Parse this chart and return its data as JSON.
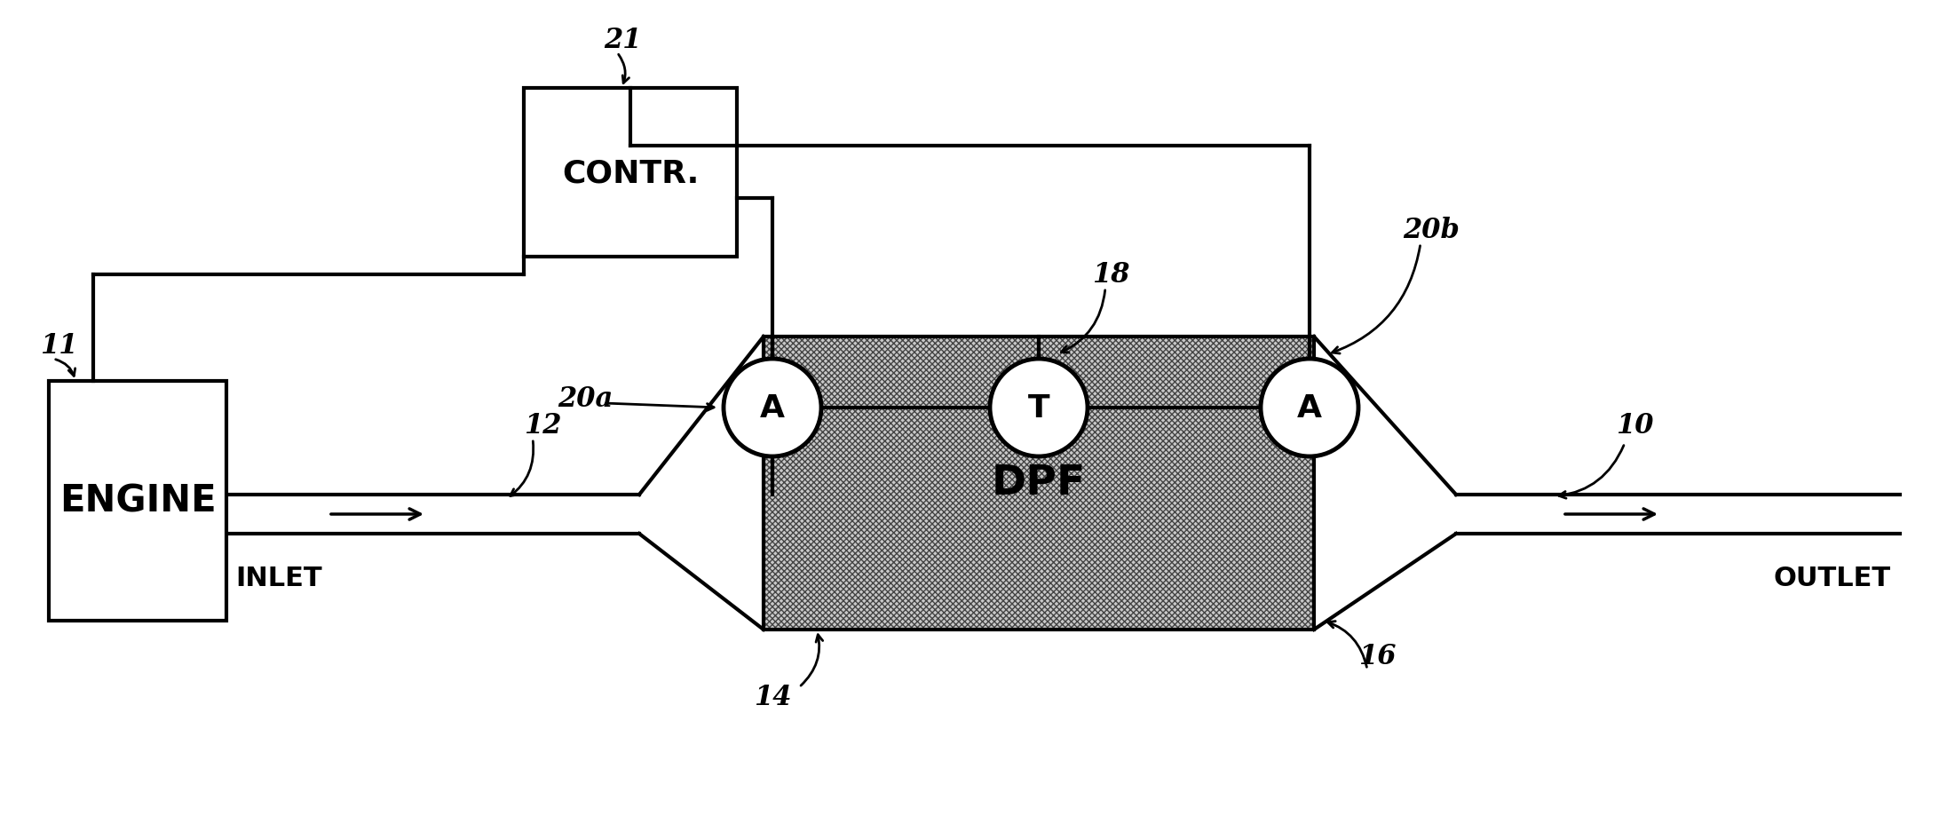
{
  "bg_color": "#ffffff",
  "line_color": "#000000",
  "labels": {
    "engine": "ENGINE",
    "inlet": "INLET",
    "outlet": "OUTLET",
    "dpf": "DPF",
    "contr": "CONTR.",
    "ref_11": "11",
    "ref_12": "12",
    "ref_14": "14",
    "ref_16": "16",
    "ref_18": "18",
    "ref_20a": "20a",
    "ref_20b": "20b",
    "ref_21": "21",
    "ref_10": "10"
  },
  "sensor_A1_label": "A",
  "sensor_T_label": "T",
  "sensor_A2_label": "A",
  "figsize": [
    21.93,
    9.2
  ],
  "dpi": 100
}
